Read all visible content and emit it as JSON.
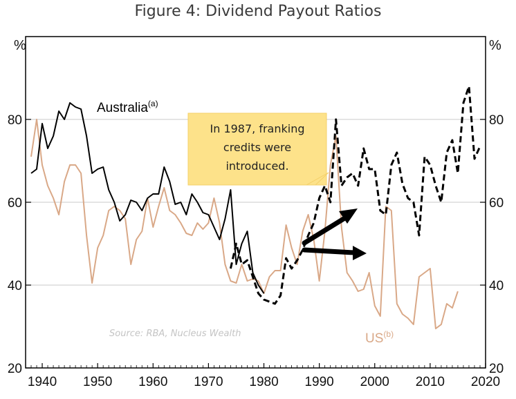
{
  "chart_data": {
    "type": "line",
    "title": "Figure 4: Dividend Payout Ratios",
    "y_unit": "%",
    "xlim": [
      1937,
      2020
    ],
    "ylim": [
      20,
      100
    ],
    "x_ticks": [
      1940,
      1950,
      1960,
      1970,
      1980,
      1990,
      2000,
      2010,
      2020
    ],
    "y_ticks": [
      20,
      40,
      60,
      80
    ],
    "grid": true,
    "colors": {
      "australia": "#000000",
      "us": "#d9a887",
      "note_bg": "#fde28a",
      "arrows": "#000000"
    },
    "series": [
      {
        "name": "Australia",
        "superscript": "(a)",
        "style": "solid",
        "x": [
          1938,
          1939,
          1940,
          1941,
          1942,
          1943,
          1944,
          1945,
          1946,
          1947,
          1948,
          1949,
          1950,
          1951,
          1952,
          1953,
          1954,
          1955,
          1956,
          1957,
          1958,
          1959,
          1960,
          1961,
          1962,
          1963,
          1964,
          1965,
          1966,
          1967,
          1968,
          1969,
          1970,
          1971,
          1972,
          1973,
          1974,
          1975,
          1976,
          1977,
          1978,
          1979,
          1980
        ],
        "values": [
          67,
          68,
          79,
          73,
          76,
          82,
          80,
          84,
          83,
          82.5,
          76,
          67,
          68,
          68.5,
          63,
          60,
          55.5,
          57,
          60.5,
          60,
          58,
          61,
          62,
          62,
          68.5,
          65,
          59.5,
          60,
          57,
          62,
          60,
          57.5,
          57,
          54,
          51,
          56,
          63,
          45,
          50,
          53,
          43,
          40,
          38
        ]
      },
      {
        "name": "Australia (dashed)",
        "style": "dashed",
        "x": [
          1974,
          1975,
          1976,
          1977,
          1978,
          1979,
          1980,
          1981,
          1982,
          1983,
          1984,
          1985,
          1986,
          1987,
          1988,
          1989,
          1990,
          1991,
          1992,
          1993,
          1994,
          1995,
          1996,
          1997,
          1998,
          1999,
          2000,
          2001,
          2002,
          2003,
          2004,
          2005,
          2006,
          2007,
          2008,
          2009,
          2010,
          2011,
          2012,
          2013,
          2014,
          2015,
          2016,
          2017,
          2018,
          2019
        ],
        "values": [
          44,
          50,
          45,
          46,
          42,
          38,
          36.5,
          36,
          35.5,
          37.5,
          46.5,
          44,
          46,
          48.5,
          52,
          55,
          61,
          64,
          60,
          80,
          64,
          66,
          67,
          64,
          73,
          68,
          68,
          58,
          57,
          69,
          72,
          64.5,
          61,
          60,
          52,
          71,
          69,
          64,
          60,
          72,
          75,
          67,
          84,
          88,
          70.5,
          73.5
        ]
      },
      {
        "name": "US",
        "superscript": "(b)",
        "style": "solid",
        "x": [
          1938,
          1939,
          1940,
          1941,
          1942,
          1943,
          1944,
          1945,
          1946,
          1947,
          1948,
          1949,
          1950,
          1951,
          1952,
          1953,
          1954,
          1955,
          1956,
          1957,
          1958,
          1959,
          1960,
          1961,
          1962,
          1963,
          1964,
          1965,
          1966,
          1967,
          1968,
          1969,
          1970,
          1971,
          1972,
          1973,
          1974,
          1975,
          1976,
          1977,
          1978,
          1979,
          1980,
          1981,
          1982,
          1983,
          1984,
          1985,
          1986,
          1987,
          1988,
          1989,
          1990,
          1991,
          1992,
          1993,
          1994,
          1995,
          1996,
          1997,
          1998,
          1999,
          2000,
          2001,
          2002,
          2003,
          2004,
          2005,
          2006,
          2007,
          2008,
          2009,
          2010,
          2011,
          2012,
          2013,
          2014,
          2015
        ],
        "values": [
          71,
          80,
          69,
          64,
          61,
          57,
          65,
          69,
          69,
          67,
          52,
          40.5,
          49,
          52,
          58,
          59,
          58,
          56,
          45,
          51,
          53,
          61,
          54,
          59,
          63.5,
          58,
          57,
          55,
          52.5,
          52,
          55,
          53.5,
          55,
          61,
          55,
          45,
          41,
          40.5,
          45,
          41,
          41.5,
          41,
          38,
          42,
          43.5,
          43.5,
          54.5,
          49,
          45,
          53,
          57,
          51,
          41,
          53,
          69,
          76,
          54,
          43,
          41,
          38.5,
          39,
          43,
          35,
          32.5,
          59,
          58,
          35.5,
          33,
          32,
          30.5,
          42,
          43,
          44,
          29.5,
          30.5,
          35.5,
          34.5,
          38.5
        ]
      }
    ],
    "annotation": {
      "lines": [
        "In 1987, franking",
        "credits were",
        "introduced."
      ]
    },
    "source": "Source: RBA, Nucleus Wealth"
  }
}
